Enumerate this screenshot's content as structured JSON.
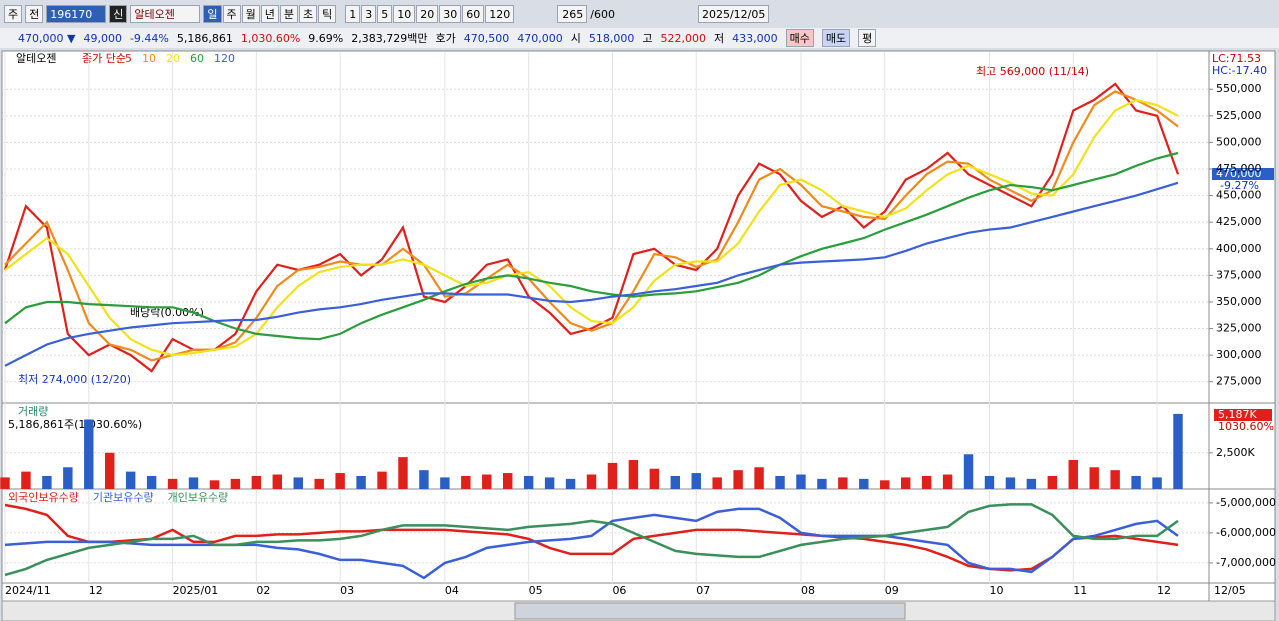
{
  "toolbar": {
    "market": "주",
    "prev": "전",
    "code": "196170",
    "badge": "신",
    "name": "알테오젠",
    "periods": [
      "일",
      "주",
      "월",
      "년",
      "분",
      "초",
      "틱"
    ],
    "intervals": [
      "1",
      "3",
      "5",
      "10",
      "20",
      "30",
      "60",
      "120"
    ],
    "count": "265",
    "max": "/600",
    "date": "2025/12/05"
  },
  "quote_bar": {
    "price": "470,000 ▼",
    "change": "49,000",
    "rate": "-9.44%",
    "volume": "5,186,861",
    "volume_rate": "1,030.60%",
    "turnover": "9.69%",
    "amount": "2,383,729백만",
    "bid_label": "호가",
    "ask": "470,500",
    "bid": "470,000",
    "open_label": "시",
    "open": "518,000",
    "high_label": "고",
    "high": "522,000",
    "low_label": "저",
    "low": "433,000",
    "buy": "매수",
    "sell": "매도",
    "avg": "평"
  },
  "chart_data": [
    {
      "type": "line",
      "title": "알테오젠",
      "legend_title": "종가 단순",
      "lc": "LC:71.53",
      "hc": "HC:-17.40",
      "last_price": "470,000",
      "last_rate": "-9.27%",
      "last_date": "12/05",
      "annotations": [
        "최고 569,000 (11/14)",
        "최저 274,000 (12/20)",
        "배당락(0.00%)"
      ],
      "categories": [
        "2024/11",
        null,
        null,
        null,
        "12",
        null,
        null,
        null,
        "2025/01",
        null,
        null,
        null,
        "02",
        null,
        null,
        null,
        "03",
        null,
        null,
        null,
        null,
        "04",
        null,
        null,
        null,
        "05",
        null,
        null,
        null,
        "06",
        null,
        null,
        null,
        "07",
        null,
        null,
        null,
        null,
        "08",
        null,
        null,
        null,
        "09",
        null,
        null,
        null,
        null,
        "10",
        null,
        null,
        null,
        "11",
        null,
        null,
        null,
        "12",
        null
      ],
      "ylim": [
        255000,
        585000
      ],
      "yticks": [
        {
          "value": 275000,
          "label": "275,000"
        },
        {
          "value": 300000,
          "label": "300,000"
        },
        {
          "value": 325000,
          "label": "325,000"
        },
        {
          "value": 350000,
          "label": "350,000"
        },
        {
          "value": 375000,
          "label": "375,000"
        },
        {
          "value": 400000,
          "label": "400,000"
        },
        {
          "value": 425000,
          "label": "425,000"
        },
        {
          "value": 450000,
          "label": "450,000"
        },
        {
          "value": 475000,
          "label": "475,000"
        },
        {
          "value": 500000,
          "label": "500,000"
        },
        {
          "value": 525000,
          "label": "525,000"
        },
        {
          "value": 550000,
          "label": "550,000"
        }
      ],
      "series": [
        {
          "name": "5",
          "color": "#e0201b",
          "values": [
            380000,
            440000,
            420000,
            320000,
            300000,
            310000,
            300000,
            285000,
            315000,
            305000,
            305000,
            320000,
            360000,
            385000,
            380000,
            385000,
            395000,
            375000,
            390000,
            420000,
            355000,
            350000,
            365000,
            385000,
            390000,
            355000,
            340000,
            320000,
            325000,
            335000,
            395000,
            400000,
            385000,
            380000,
            400000,
            450000,
            480000,
            470000,
            445000,
            430000,
            440000,
            420000,
            435000,
            465000,
            475000,
            490000,
            470000,
            460000,
            450000,
            440000,
            470000,
            530000,
            540000,
            555000,
            530000,
            525000,
            470000
          ]
        },
        {
          "name": "10",
          "color": "#f08a1c",
          "values": [
            385000,
            405000,
            425000,
            380000,
            330000,
            310000,
            305000,
            295000,
            300000,
            305000,
            305000,
            312000,
            335000,
            365000,
            380000,
            383000,
            388000,
            385000,
            385000,
            400000,
            385000,
            355000,
            358000,
            372000,
            385000,
            372000,
            350000,
            330000,
            323000,
            330000,
            360000,
            395000,
            392000,
            383000,
            390000,
            425000,
            465000,
            475000,
            460000,
            440000,
            435000,
            430000,
            428000,
            450000,
            470000,
            482000,
            480000,
            465000,
            455000,
            445000,
            455000,
            500000,
            535000,
            548000,
            540000,
            530000,
            515000
          ]
        },
        {
          "name": "20",
          "color": "#f2e21a",
          "values": [
            380000,
            395000,
            410000,
            395000,
            365000,
            335000,
            315000,
            305000,
            300000,
            302000,
            305000,
            308000,
            320000,
            345000,
            365000,
            378000,
            383000,
            385000,
            385000,
            390000,
            385000,
            375000,
            365000,
            368000,
            375000,
            378000,
            365000,
            345000,
            332000,
            330000,
            345000,
            370000,
            385000,
            388000,
            388000,
            405000,
            435000,
            460000,
            465000,
            455000,
            440000,
            435000,
            430000,
            438000,
            455000,
            470000,
            478000,
            470000,
            462000,
            452000,
            450000,
            470000,
            505000,
            530000,
            540000,
            535000,
            525000
          ]
        },
        {
          "name": "60",
          "color": "#2a9d3c",
          "values": [
            330000,
            345000,
            350000,
            350000,
            348000,
            347000,
            346000,
            345000,
            345000,
            340000,
            332000,
            325000,
            320000,
            318000,
            316000,
            315000,
            320000,
            330000,
            338000,
            345000,
            352000,
            360000,
            367000,
            372000,
            375000,
            372000,
            368000,
            365000,
            360000,
            357000,
            355000,
            357000,
            358000,
            360000,
            364000,
            368000,
            375000,
            385000,
            393000,
            400000,
            405000,
            410000,
            418000,
            425000,
            432000,
            440000,
            448000,
            455000,
            460000,
            458000,
            455000,
            460000,
            465000,
            470000,
            478000,
            485000,
            490000
          ]
        },
        {
          "name": "120",
          "color": "#3a5fd8",
          "values": [
            290000,
            300000,
            310000,
            316000,
            320000,
            323000,
            326000,
            328000,
            330000,
            331000,
            332000,
            333000,
            333000,
            336000,
            340000,
            343000,
            345000,
            348000,
            352000,
            355000,
            358000,
            358000,
            357000,
            357000,
            357000,
            354000,
            351000,
            350000,
            352000,
            355000,
            357000,
            360000,
            362000,
            365000,
            368000,
            375000,
            380000,
            385000,
            387000,
            388000,
            389000,
            390000,
            392000,
            398000,
            405000,
            410000,
            415000,
            418000,
            420000,
            425000,
            430000,
            435000,
            440000,
            445000,
            450000,
            456000,
            462000
          ]
        }
      ]
    },
    {
      "type": "bar",
      "title": "거래량",
      "subtitle": "5,186,861주(1,030.60%)",
      "last_volume": "5,187K",
      "last_rate": "1030.60%",
      "up_color": "#e0201b",
      "down_color": "#2a5fc8",
      "ylim": [
        0,
        5800000
      ],
      "yticks": [
        {
          "value": 2500000,
          "label": "2,500K"
        }
      ],
      "values": [
        800000,
        1200000,
        900000,
        1500000,
        4800000,
        2500000,
        1200000,
        900000,
        700000,
        800000,
        600000,
        700000,
        900000,
        1000000,
        800000,
        700000,
        1100000,
        900000,
        1200000,
        2200000,
        1300000,
        800000,
        900000,
        1000000,
        1100000,
        900000,
        800000,
        700000,
        1000000,
        1800000,
        2000000,
        1400000,
        900000,
        1100000,
        800000,
        1300000,
        1500000,
        900000,
        1000000,
        700000,
        800000,
        700000,
        600000,
        800000,
        900000,
        1000000,
        2400000,
        900000,
        800000,
        700000,
        900000,
        2000000,
        1500000,
        1300000,
        900000,
        800000,
        5186861
      ]
    },
    {
      "type": "line",
      "ylim": [
        -7670000,
        -4570000
      ],
      "yticks": [
        {
          "value": -5000000,
          "label": "-5,000,000"
        },
        {
          "value": -6000000,
          "label": "-6,000,000"
        },
        {
          "value": -7000000,
          "label": "-7,000,000"
        }
      ],
      "series": [
        {
          "name": "외국인보유수량",
          "color": "#e0201b",
          "values": [
            -5070000,
            -5200000,
            -5400000,
            -6100000,
            -6300000,
            -6300000,
            -6250000,
            -6200000,
            -5900000,
            -6300000,
            -6300000,
            -6100000,
            -6100000,
            -6050000,
            -6050000,
            -6000000,
            -5950000,
            -5950000,
            -5900000,
            -5900000,
            -5900000,
            -5900000,
            -5950000,
            -6000000,
            -6050000,
            -6200000,
            -6500000,
            -6700000,
            -6700000,
            -6700000,
            -6200000,
            -6100000,
            -6000000,
            -5900000,
            -5900000,
            -5900000,
            -5950000,
            -6000000,
            -6050000,
            -6100000,
            -6150000,
            -6200000,
            -6300000,
            -6400000,
            -6550000,
            -6800000,
            -7100000,
            -7200000,
            -7250000,
            -7200000,
            -6800000,
            -6200000,
            -6150000,
            -6100000,
            -6200000,
            -6300000,
            -6400000
          ]
        },
        {
          "name": "기관보유수량",
          "color": "#3a5fd8",
          "values": [
            -6400000,
            -6350000,
            -6300000,
            -6300000,
            -6300000,
            -6300000,
            -6350000,
            -6400000,
            -6400000,
            -6400000,
            -6400000,
            -6400000,
            -6400000,
            -6500000,
            -6550000,
            -6700000,
            -6900000,
            -6900000,
            -7000000,
            -7100000,
            -7500000,
            -7000000,
            -6800000,
            -6500000,
            -6400000,
            -6300000,
            -6250000,
            -6200000,
            -6100000,
            -5600000,
            -5500000,
            -5400000,
            -5500000,
            -5600000,
            -5300000,
            -5200000,
            -5200000,
            -5500000,
            -6000000,
            -6100000,
            -6100000,
            -6100000,
            -6100000,
            -6200000,
            -6300000,
            -6400000,
            -7000000,
            -7200000,
            -7200000,
            -7300000,
            -6800000,
            -6200000,
            -6100000,
            -5900000,
            -5700000,
            -5600000,
            -6100000
          ]
        },
        {
          "name": "개인보유수량",
          "color": "#3a8f5a",
          "values": [
            -7400000,
            -7200000,
            -6900000,
            -6700000,
            -6500000,
            -6400000,
            -6300000,
            -6200000,
            -6200000,
            -6100000,
            -6400000,
            -6400000,
            -6300000,
            -6300000,
            -6250000,
            -6250000,
            -6200000,
            -6100000,
            -5900000,
            -5750000,
            -5750000,
            -5750000,
            -5800000,
            -5850000,
            -5900000,
            -5800000,
            -5750000,
            -5700000,
            -5600000,
            -5700000,
            -6000000,
            -6300000,
            -6600000,
            -6700000,
            -6750000,
            -6800000,
            -6800000,
            -6600000,
            -6400000,
            -6300000,
            -6200000,
            -6150000,
            -6100000,
            -6000000,
            -5900000,
            -5800000,
            -5300000,
            -5100000,
            -5050000,
            -5050000,
            -5400000,
            -6100000,
            -6200000,
            -6200000,
            -6100000,
            -6100000,
            -5600000
          ]
        }
      ]
    }
  ]
}
